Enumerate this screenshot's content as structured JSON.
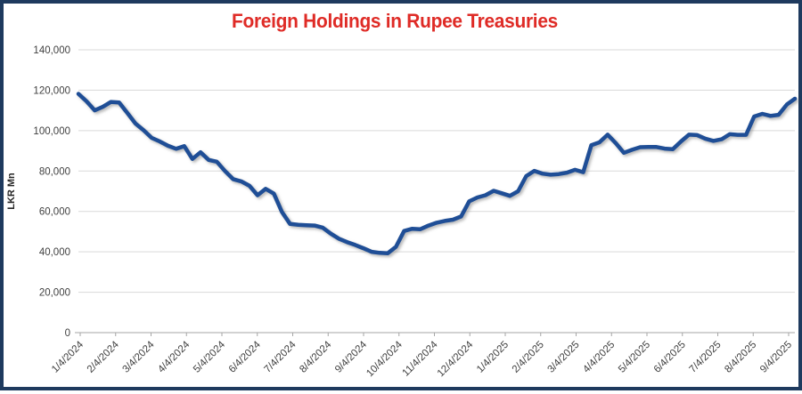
{
  "window": {
    "border_color": "#1e3a5e",
    "background": "#ffffff"
  },
  "chart_data": {
    "type": "line",
    "title": "Foreign Holdings in Rupee Treasuries",
    "title_color": "#df2b26",
    "xlabel": "",
    "ylabel": "LKR Mn",
    "ylim": [
      0,
      140000
    ],
    "ytick_interval": 20000,
    "ytick_labels": [
      "0",
      "20,000",
      "40,000",
      "60,000",
      "80,000",
      "100,000",
      "120,000",
      "140,000"
    ],
    "xtick_labels": [
      "1/4/2024",
      "2/4/2024",
      "3/4/2024",
      "4/4/2024",
      "5/4/2024",
      "6/4/2024",
      "7/4/2024",
      "8/4/2024",
      "9/4/2024",
      "10/4/2024",
      "11/4/2024",
      "12/4/2024",
      "1/4/2025",
      "2/4/2025",
      "3/4/2025",
      "4/4/2025",
      "5/4/2025",
      "6/4/2025",
      "7/4/2025",
      "8/4/2025",
      "9/4/2025"
    ],
    "grid": "horizontal",
    "legend_position": "none",
    "label_color": "#404040",
    "gridline_color": "#d9d9d9",
    "axis_color": "#a6a6a6",
    "x_frequency": "weekly",
    "series": [
      {
        "name": "Foreign Holdings in Rupee Treasuries",
        "color": "#1f4e96",
        "values": [
          118200,
          114500,
          110000,
          111800,
          114200,
          113900,
          108800,
          103500,
          100200,
          96400,
          94600,
          92500,
          91000,
          92300,
          86000,
          89300,
          85500,
          84600,
          80000,
          76000,
          74900,
          72700,
          68000,
          71200,
          68800,
          59700,
          53800,
          53400,
          53200,
          53000,
          52000,
          49000,
          46500,
          44800,
          43400,
          41800,
          40000,
          39500,
          39300,
          42500,
          50300,
          51400,
          51200,
          53000,
          54400,
          55300,
          55900,
          57500,
          65000,
          66900,
          68000,
          70200,
          69000,
          67700,
          70000,
          77500,
          80100,
          78700,
          78200,
          78500,
          79200,
          80600,
          79400,
          92800,
          94200,
          98000,
          93800,
          89000,
          90500,
          91800,
          91900,
          91900,
          91100,
          90800,
          94600,
          98000,
          97800,
          96000,
          94900,
          95700,
          98200,
          97900,
          97900,
          107000,
          108300,
          107300,
          107800,
          112900,
          115800
        ]
      }
    ]
  }
}
